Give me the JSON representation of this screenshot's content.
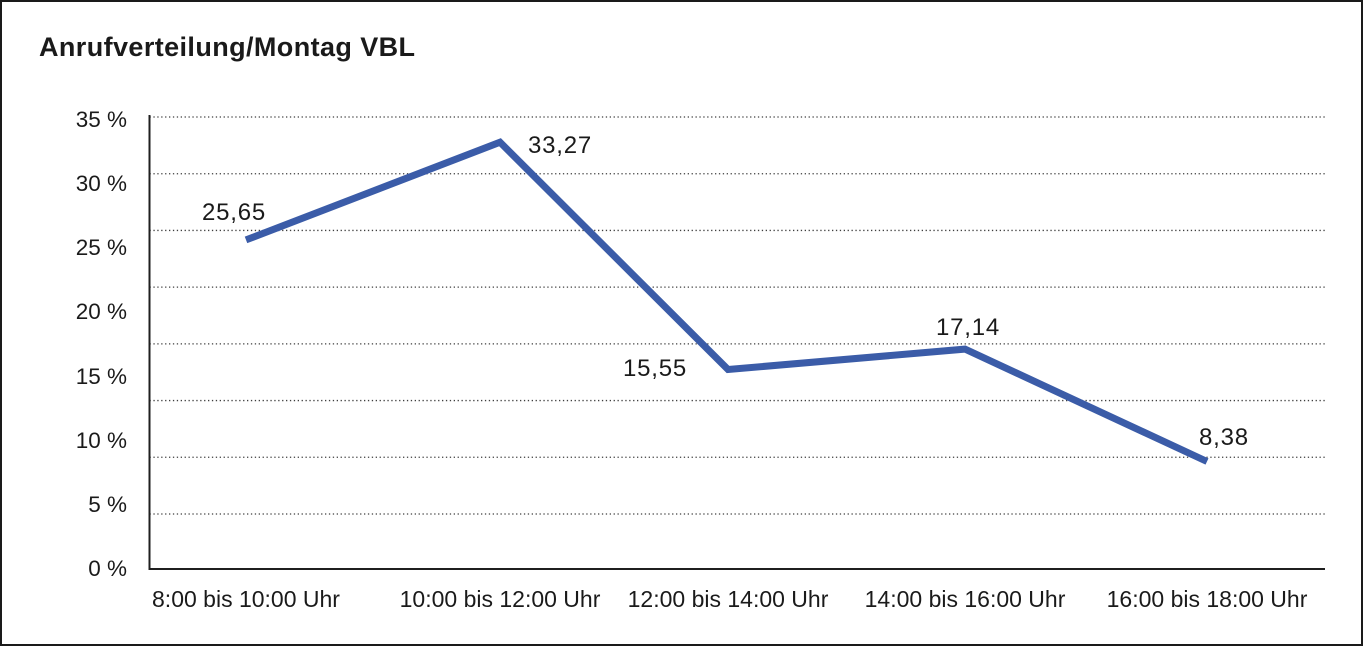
{
  "panel": {
    "background": "#ffffff",
    "border_color": "#1a1a1a"
  },
  "chart_data": {
    "type": "line",
    "title": "Anrufverteilung/Montag VBL",
    "categories": [
      "8:00 bis 10:00 Uhr",
      "10:00 bis 12:00 Uhr",
      "12:00 bis 14:00 Uhr",
      "14:00 bis 16:00 Uhr",
      "16:00 bis 18:00 Uhr"
    ],
    "values": [
      25.65,
      33.27,
      15.55,
      17.14,
      8.38
    ],
    "point_labels": [
      "25,65",
      "33,27",
      "15,55",
      "17,14",
      "8,38"
    ],
    "ytick_labels": [
      "35 %",
      "30 %",
      "25 %",
      "20 %",
      "15 %",
      "10 %",
      "5 %",
      "0 %"
    ],
    "ytick_values": [
      35,
      30,
      25,
      20,
      15,
      10,
      5,
      0
    ],
    "ylim": [
      0,
      35
    ],
    "xlabel": "",
    "ylabel": "",
    "grid": "horizontal-dotted",
    "legend": "none",
    "line_color": "#3B5CA8",
    "text_color": "#1a1a1a"
  }
}
